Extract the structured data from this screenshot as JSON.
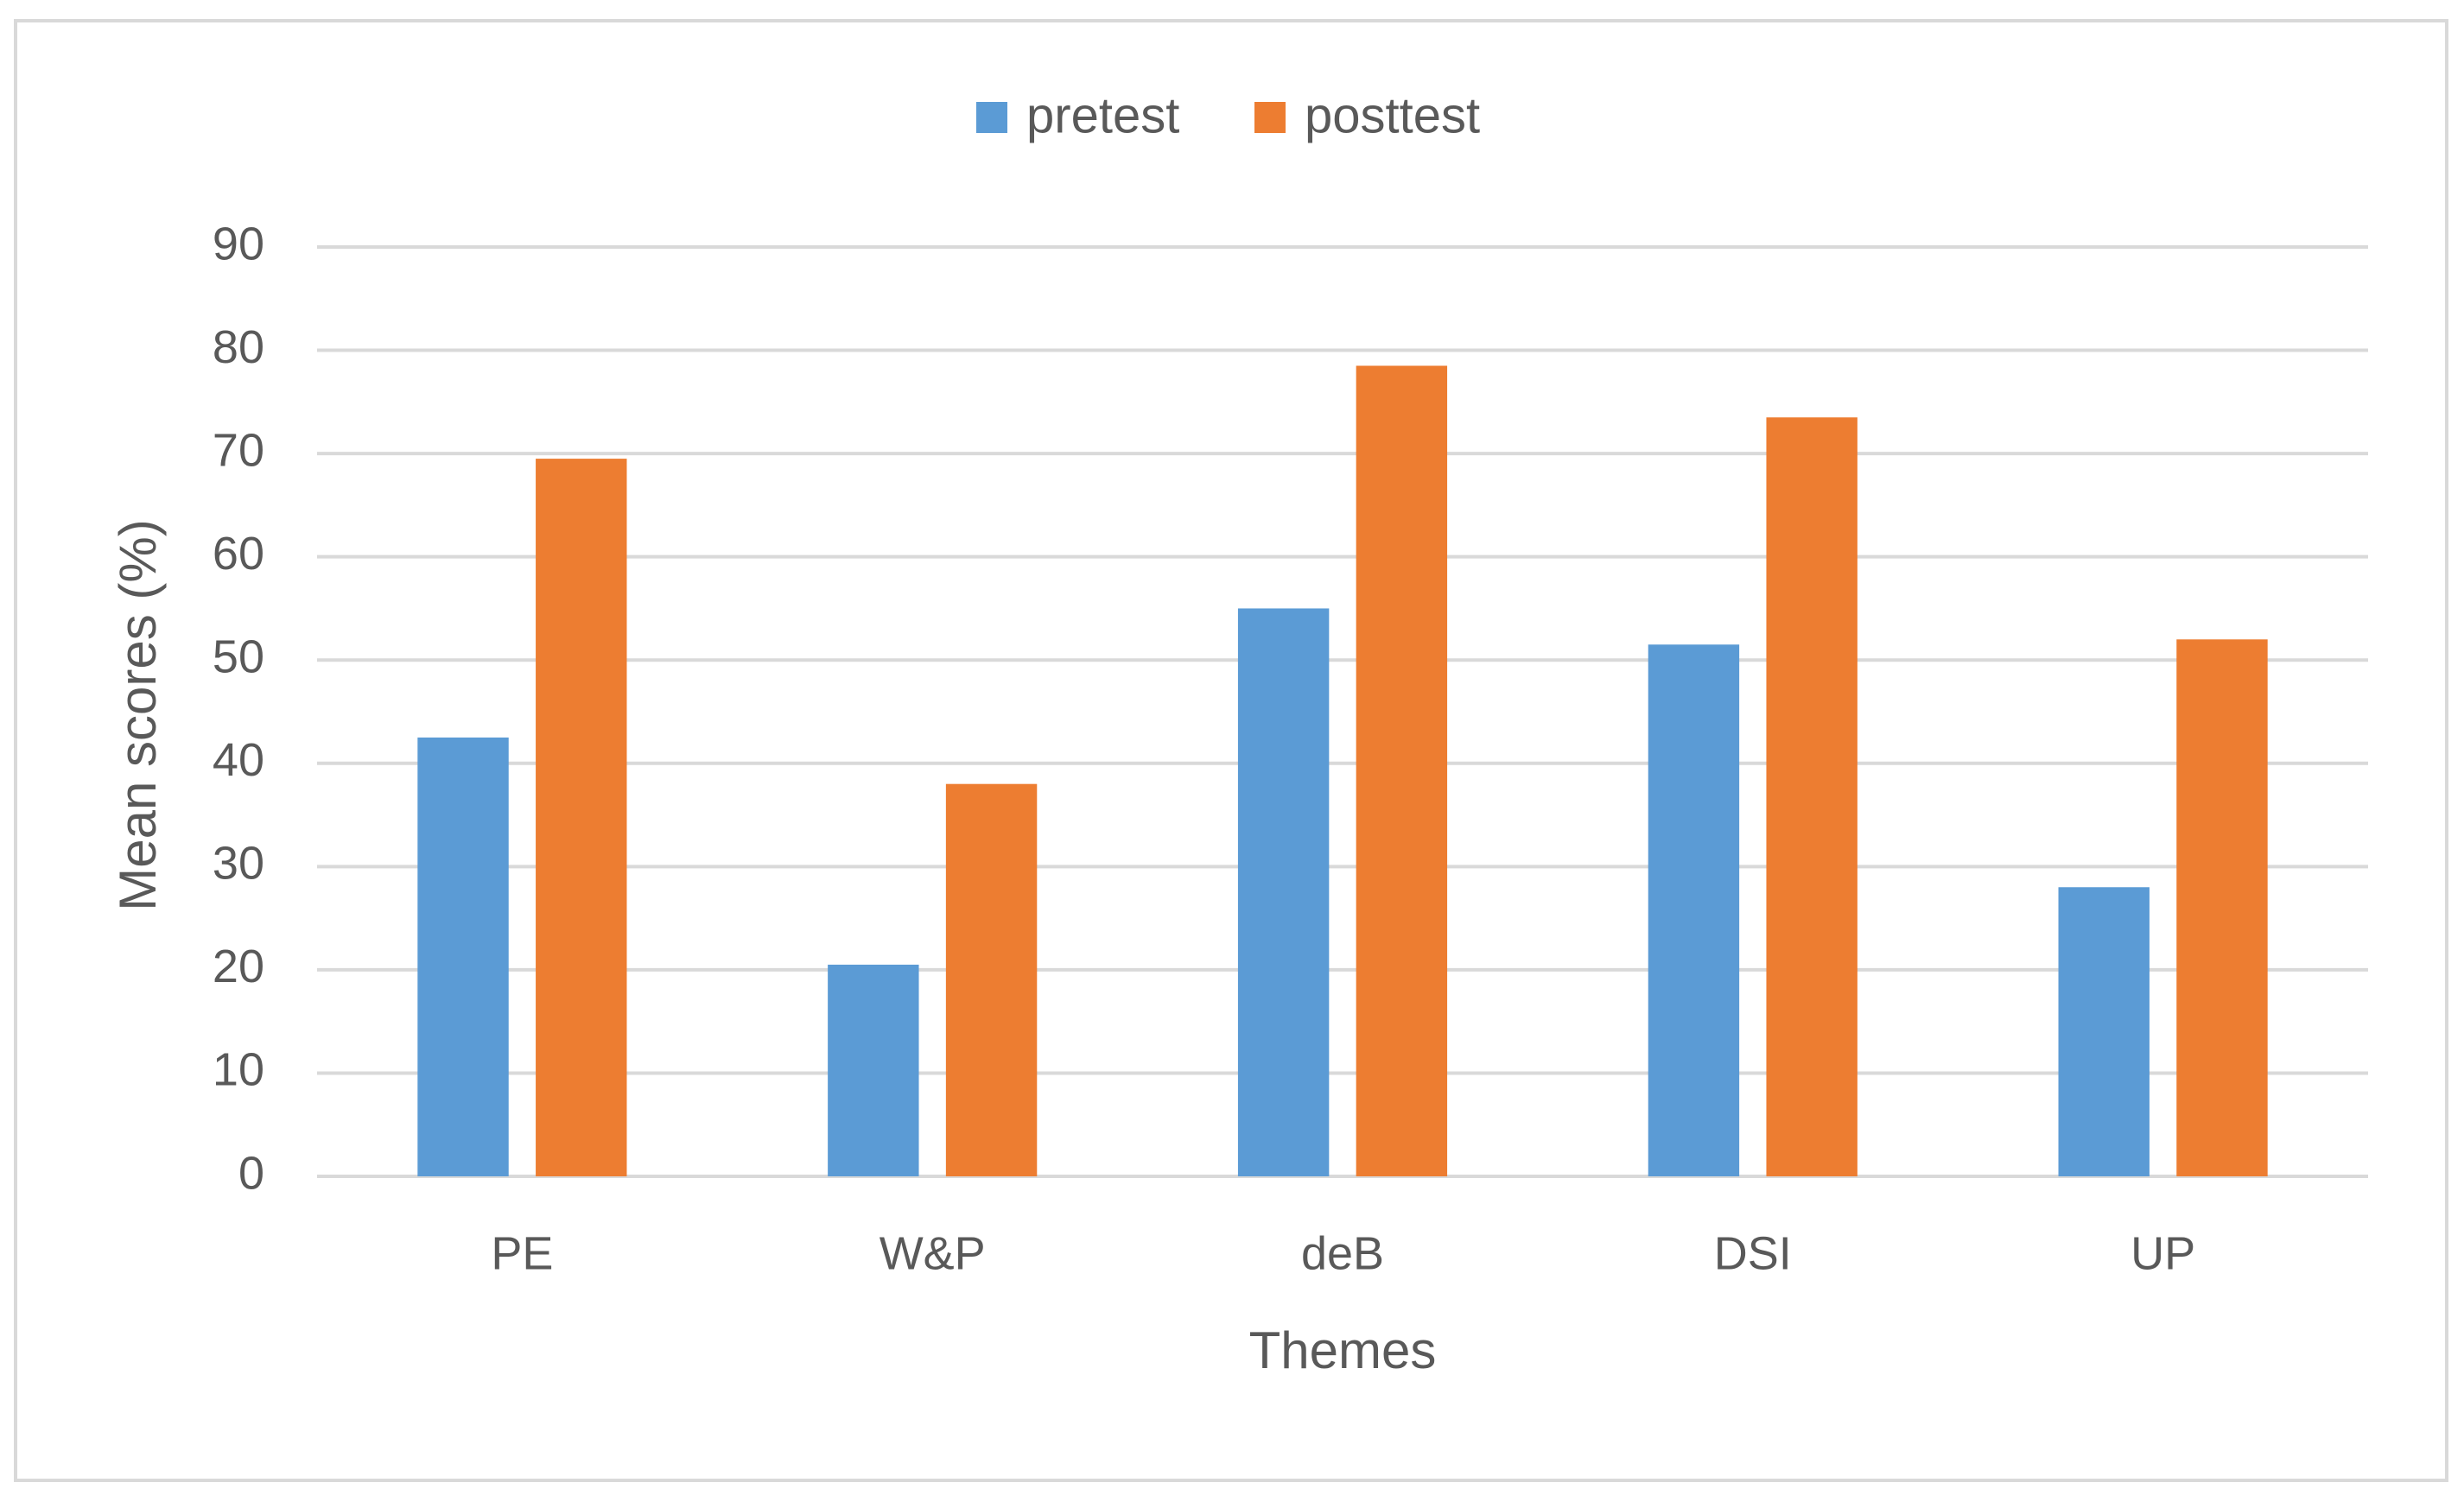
{
  "chart_data": {
    "type": "bar",
    "x_label": "Themes",
    "y_label": "Mean scores (%)",
    "categories": [
      "PE",
      "W&P",
      "deB",
      "DSI",
      "UP"
    ],
    "series": [
      {
        "name": "pretest",
        "color": "#5b9bd5",
        "values": [
          42.5,
          20.5,
          55,
          51.5,
          28
        ]
      },
      {
        "name": "posttest",
        "color": "#ed7d31",
        "values": [
          69.5,
          38,
          78.5,
          73.5,
          52
        ]
      }
    ],
    "ylim": [
      0,
      90
    ],
    "yticks": [
      0,
      10,
      20,
      30,
      40,
      50,
      60,
      70,
      80,
      90
    ],
    "grid": true,
    "legend": "top"
  }
}
